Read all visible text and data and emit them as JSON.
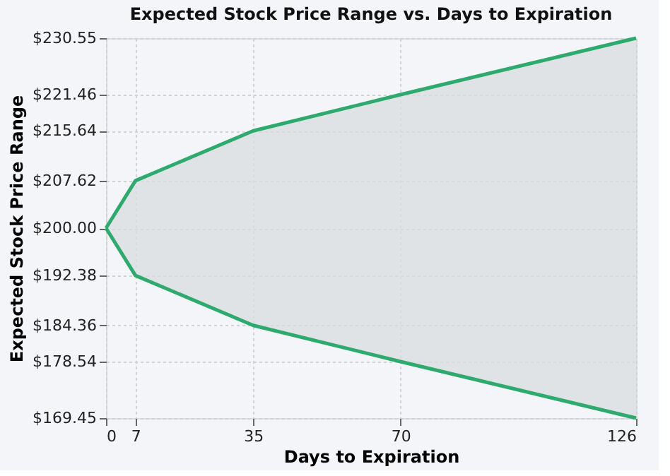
{
  "chart_data": {
    "type": "line",
    "title": "Expected Stock Price Range vs. Days to Expiration",
    "xlabel": "Days to Expiration",
    "ylabel": "Expected Stock Price Range",
    "x": [
      0,
      7,
      35,
      70,
      126
    ],
    "series": [
      {
        "color": "#2eaa6e",
        "values": [
          200.0,
          207.62,
          215.64,
          221.46,
          230.55
        ],
        "lower": [
          200.0,
          192.38,
          184.36,
          178.54,
          169.45
        ],
        "upper": [
          200.0,
          207.62,
          215.64,
          221.46,
          230.55
        ]
      },
      {
        "color": "#2eaa6e",
        "values": [
          200.0,
          192.38,
          184.36,
          178.54,
          169.45
        ]
      }
    ],
    "xlim": [
      0,
      126
    ],
    "xticks": [
      0,
      7,
      35,
      70,
      126
    ],
    "ylim": [
      169.45,
      230.55
    ],
    "yticks": [
      {
        "value": 169.45,
        "label": "$169.45"
      },
      {
        "value": 178.54,
        "label": "$178.54"
      },
      {
        "value": 184.36,
        "label": "$184.36"
      },
      {
        "value": 192.38,
        "label": "$192.38"
      },
      {
        "value": 200.0,
        "label": "$200.00"
      },
      {
        "value": 207.62,
        "label": "$207.62"
      },
      {
        "value": 215.64,
        "label": "$215.64"
      },
      {
        "value": 221.46,
        "label": "$221.46"
      },
      {
        "value": 230.55,
        "label": "$230.55"
      }
    ],
    "grid": true,
    "marker": "none",
    "line_style": "solid"
  }
}
